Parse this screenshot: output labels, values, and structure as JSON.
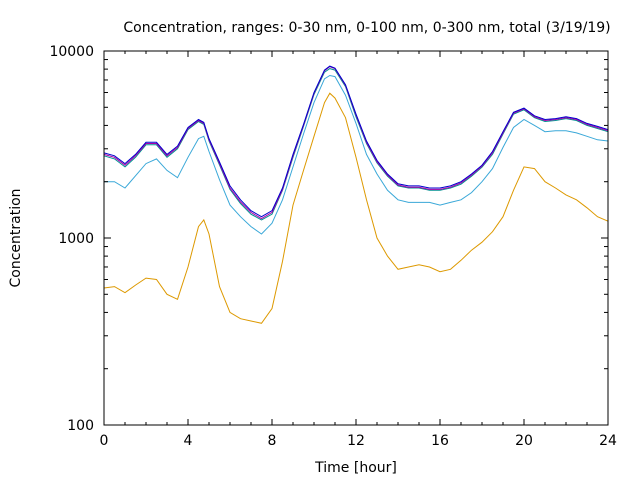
{
  "chart_data": {
    "type": "line",
    "title": "Concentration, ranges: 0-30 nm, 0-100 nm, 0-300 nm, total (3/19/19)",
    "xlabel": "Time [hour]",
    "ylabel": "Concentration",
    "xlim": [
      0,
      24
    ],
    "ylim": [
      100,
      10000
    ],
    "yscale": "log",
    "xticks": [
      0,
      4,
      8,
      12,
      16,
      20,
      24
    ],
    "xtick_labels": [
      "0",
      "4",
      "8",
      "12",
      "16",
      "20",
      "24"
    ],
    "yticks": [
      100,
      1000,
      10000
    ],
    "ytick_labels": [
      "100",
      "1000",
      "10000"
    ],
    "grid": false,
    "legend": "none",
    "x": [
      0,
      0.5,
      1,
      1.5,
      2,
      2.5,
      3,
      3.5,
      4,
      4.5,
      4.75,
      5,
      5.5,
      6,
      6.5,
      7,
      7.5,
      8,
      8.5,
      9,
      9.5,
      10,
      10.5,
      10.75,
      11,
      11.5,
      12,
      12.5,
      13,
      13.5,
      14,
      14.5,
      15,
      15.5,
      16,
      16.5,
      17,
      17.5,
      18,
      18.5,
      19,
      19.5,
      20,
      20.5,
      21,
      21.5,
      22,
      22.5,
      23,
      23.5,
      24
    ],
    "series": [
      {
        "color": "#0000cc",
        "values": [
          2850,
          2750,
          2500,
          2800,
          3250,
          3250,
          2800,
          3100,
          3900,
          4300,
          4150,
          3400,
          2550,
          1900,
          1600,
          1400,
          1300,
          1400,
          1850,
          2800,
          4050,
          6000,
          7900,
          8300,
          8100,
          6600,
          4600,
          3300,
          2600,
          2200,
          1950,
          1900,
          1900,
          1850,
          1850,
          1900,
          2000,
          2200,
          2450,
          2900,
          3700,
          4700,
          4950,
          4500,
          4300,
          4350,
          4450,
          4350,
          4100,
          3950,
          3800
        ]
      },
      {
        "color": "#aa00aa",
        "values": [
          2800,
          2700,
          2450,
          2750,
          3200,
          3200,
          2750,
          3050,
          3850,
          4250,
          4100,
          3350,
          2500,
          1850,
          1560,
          1370,
          1270,
          1370,
          1820,
          2750,
          4000,
          5950,
          7850,
          8250,
          8050,
          6550,
          4550,
          3250,
          2560,
          2170,
          1920,
          1870,
          1870,
          1820,
          1820,
          1870,
          1970,
          2170,
          2420,
          2850,
          3650,
          4650,
          4900,
          4450,
          4250,
          4300,
          4400,
          4300,
          4050,
          3900,
          3750
        ]
      },
      {
        "color": "#009090",
        "values": [
          2750,
          2650,
          2400,
          2700,
          3150,
          3150,
          2700,
          3000,
          3800,
          4200,
          4050,
          3300,
          2460,
          1820,
          1530,
          1340,
          1250,
          1340,
          1800,
          2700,
          3950,
          5850,
          7700,
          8050,
          7900,
          6450,
          4450,
          3200,
          2520,
          2140,
          1900,
          1850,
          1850,
          1800,
          1800,
          1850,
          1940,
          2140,
          2390,
          2800,
          3600,
          4600,
          4850,
          4400,
          4200,
          4250,
          4350,
          4250,
          4000,
          3850,
          3700
        ]
      },
      {
        "color": "#3aa8d8",
        "values": [
          2000,
          2000,
          1850,
          2150,
          2500,
          2650,
          2300,
          2100,
          2700,
          3400,
          3500,
          2900,
          2050,
          1500,
          1300,
          1150,
          1050,
          1200,
          1600,
          2400,
          3600,
          5300,
          7100,
          7400,
          7300,
          5800,
          4100,
          2800,
          2200,
          1800,
          1600,
          1550,
          1550,
          1550,
          1500,
          1550,
          1600,
          1750,
          2000,
          2350,
          3050,
          3900,
          4300,
          4000,
          3700,
          3750,
          3750,
          3650,
          3500,
          3350,
          3300
        ]
      },
      {
        "color": "#dd9900",
        "values": [
          540,
          550,
          510,
          560,
          610,
          600,
          500,
          470,
          700,
          1150,
          1250,
          1050,
          550,
          400,
          370,
          360,
          350,
          420,
          750,
          1500,
          2300,
          3500,
          5300,
          5950,
          5600,
          4400,
          2700,
          1600,
          1000,
          800,
          680,
          700,
          720,
          700,
          660,
          680,
          760,
          860,
          950,
          1080,
          1300,
          1800,
          2400,
          2350,
          2000,
          1850,
          1700,
          1600,
          1450,
          1300,
          1230
        ]
      }
    ]
  }
}
